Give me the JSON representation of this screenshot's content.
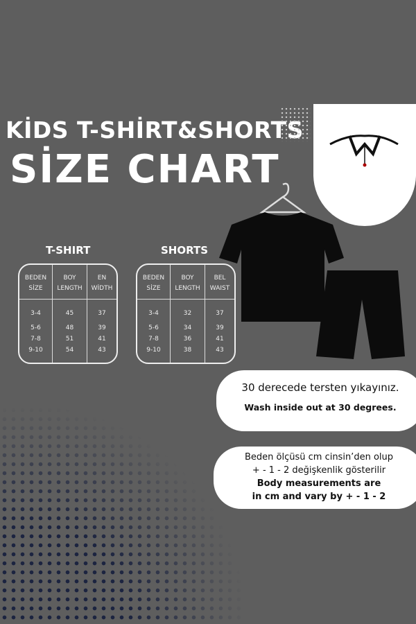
{
  "title": {
    "line1": "KİDS T-SHİRT&SHORTS",
    "line2": "SİZE CHART"
  },
  "tshirt": {
    "heading": "T-SHIRT",
    "columns": [
      {
        "h1": "BEDEN",
        "h2": "SİZE",
        "values": [
          "3-4",
          "5-6",
          "7-8",
          "9-10"
        ]
      },
      {
        "h1": "BOY",
        "h2": "LENGTH",
        "values": [
          "45",
          "48",
          "51",
          "54"
        ]
      },
      {
        "h1": "EN",
        "h2": "WİDTH",
        "values": [
          "37",
          "39",
          "41",
          "43"
        ]
      }
    ]
  },
  "shorts": {
    "heading": "SHORTS",
    "columns": [
      {
        "h1": "BEDEN",
        "h2": "SİZE",
        "values": [
          "3-4",
          "5-6",
          "7-8",
          "9-10"
        ]
      },
      {
        "h1": "BOY",
        "h2": "LENGTH",
        "values": [
          "32",
          "34",
          "36",
          "38"
        ]
      },
      {
        "h1": "BEL",
        "h2": "WAIST",
        "values": [
          "37",
          "39",
          "41",
          "43"
        ]
      }
    ]
  },
  "wash": {
    "tr": "30 derecede tersten yıkayınız.",
    "en": "Wash inside out at 30 degrees."
  },
  "measure": {
    "tr1": "Beden ölçüsü cm cinsin’den olup",
    "tr2": "+ - 1 - 2 değişkenlik gösterilir",
    "en1": "Body measurements are",
    "en2": "in cm and vary by + - 1 - 2"
  },
  "icons": [
    "collar-icon",
    "hanger-icon"
  ],
  "colors": {
    "background": "#5e5e5e",
    "dots": "#1c2440"
  }
}
